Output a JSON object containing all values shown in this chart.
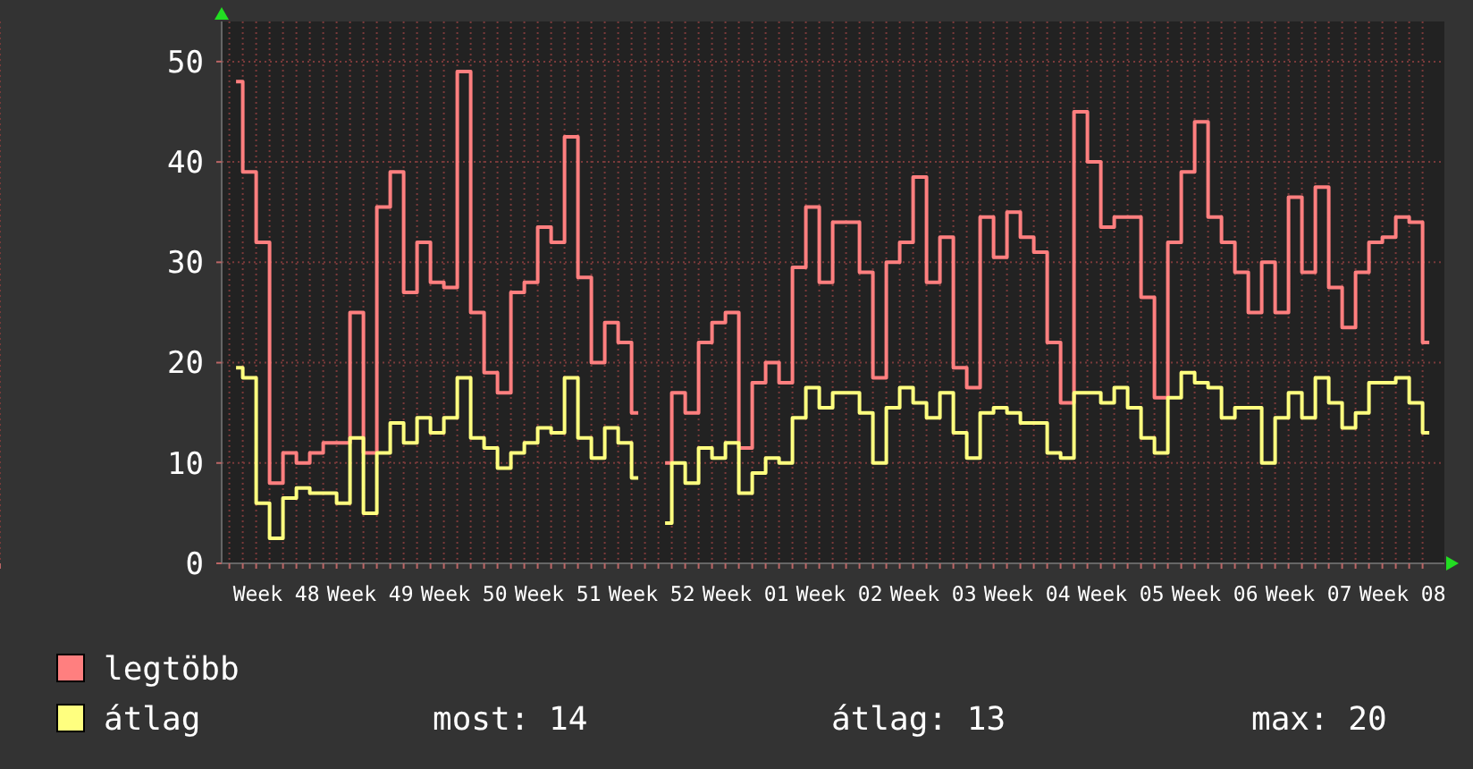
{
  "chart_data": {
    "type": "step",
    "categories": [
      null,
      null,
      null,
      "Week 48",
      null,
      null,
      null,
      null,
      null,
      null,
      "Week 49",
      null,
      null,
      null,
      null,
      null,
      null,
      "Week 50",
      null,
      null,
      null,
      null,
      null,
      null,
      "Week 51",
      null,
      null,
      null,
      null,
      null,
      null,
      "Week 52",
      null,
      null,
      null,
      null,
      null,
      null,
      "Week 01",
      null,
      null,
      null,
      null,
      null,
      null,
      "Week 02",
      null,
      null,
      null,
      null,
      null,
      null,
      "Week 03",
      null,
      null,
      null,
      null,
      null,
      null,
      "Week 04",
      null,
      null,
      null,
      null,
      null,
      null,
      "Week 05",
      null,
      null,
      null,
      null,
      null,
      null,
      "Week 06",
      null,
      null,
      null,
      null,
      null,
      null,
      "Week 07",
      null,
      null,
      null,
      null,
      null,
      null,
      "Week 08",
      null,
      null
    ],
    "series": [
      {
        "name": "legtöbb",
        "color": "#ff7f7f",
        "values": [
          48,
          39,
          32,
          8,
          11,
          10,
          11,
          12,
          12,
          25,
          11,
          35.5,
          39,
          27,
          32,
          28,
          27.5,
          49,
          25,
          19,
          17,
          27,
          28,
          33.5,
          32,
          42.5,
          28.5,
          20,
          24,
          22,
          15,
          null,
          10,
          17,
          15,
          22,
          24,
          25,
          11.5,
          18,
          20,
          18,
          29.5,
          35.5,
          28,
          34,
          34,
          29,
          18.5,
          30,
          32,
          38.5,
          28,
          32.5,
          19.5,
          17.5,
          34.5,
          30.5,
          35,
          32.5,
          31,
          22,
          16,
          45,
          40,
          33.5,
          34.5,
          34.5,
          26.5,
          16.5,
          32,
          39,
          44,
          34.5,
          32,
          29,
          25,
          30,
          25,
          36.5,
          29,
          37.5,
          27.5,
          23.5,
          29,
          32,
          32.5,
          34.5,
          34,
          22
        ]
      },
      {
        "name": "átlag",
        "color": "#ffff7f",
        "values": [
          19.5,
          18.5,
          6,
          2.5,
          6.5,
          7.5,
          7,
          7,
          6,
          12.5,
          5,
          11,
          14,
          12,
          14.5,
          13,
          14.5,
          18.5,
          12.5,
          11.5,
          9.5,
          11,
          12,
          13.5,
          13,
          18.5,
          12.5,
          10.5,
          13.5,
          12,
          8.5,
          null,
          4,
          10,
          8,
          11.5,
          10.5,
          12,
          7,
          9,
          10.5,
          10,
          14.5,
          17.5,
          15.5,
          17,
          17,
          15,
          10,
          15.5,
          17.5,
          16,
          14.5,
          17,
          13,
          10.5,
          15,
          15.5,
          15,
          14,
          14,
          11,
          10.5,
          17,
          17,
          16,
          17.5,
          15.5,
          12.5,
          11,
          16.5,
          19,
          18,
          17.5,
          14.5,
          15.5,
          15.5,
          10,
          14.5,
          17,
          14.5,
          18.5,
          16,
          13.5,
          15,
          18,
          18,
          18.5,
          16,
          13
        ]
      }
    ],
    "ylim": [
      0,
      54
    ],
    "yticks": [
      0,
      10,
      20,
      30,
      40,
      50
    ],
    "grid": true,
    "legend": "bottom",
    "annotations": [
      "most: 14",
      "átlag: 13",
      "max: 20"
    ]
  }
}
